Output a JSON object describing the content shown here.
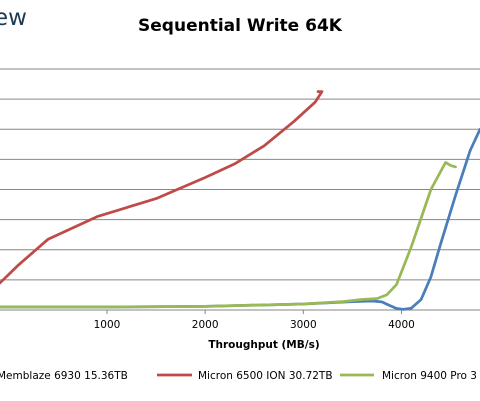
{
  "logo_text": "ew",
  "chart_data": {
    "type": "line",
    "title": "Sequential Write 64K",
    "xlabel": "Throughput (MB/s)",
    "ylabel": "",
    "xlim": [
      -90,
      4800
    ],
    "ylim": [
      0,
      8.4
    ],
    "x_ticks": [
      1000,
      2000,
      3000,
      4000
    ],
    "grid": true,
    "legend_position": "bottom",
    "series": [
      {
        "name": "Memblaze 6930 15.36TB",
        "color": "#4a7ebb",
        "x": [
          -90,
          500,
          1000,
          2000,
          3000,
          3500,
          3700,
          3800,
          3880,
          3950,
          4020,
          4100,
          4200,
          4300,
          4400,
          4550,
          4700,
          4800
        ],
        "y": [
          0.1,
          0.1,
          0.1,
          0.12,
          0.2,
          0.28,
          0.3,
          0.27,
          0.15,
          0.05,
          0.02,
          0.06,
          0.35,
          1.1,
          2.2,
          3.8,
          5.3,
          6.0
        ]
      },
      {
        "name": "Micron 6500 ION 30.72TB",
        "color": "#be4b48",
        "x": [
          -90,
          100,
          400,
          900,
          1500,
          2000,
          2300,
          2600,
          2900,
          3120,
          3190,
          3150
        ],
        "y": [
          0.9,
          1.5,
          2.35,
          3.1,
          3.7,
          4.4,
          4.85,
          5.45,
          6.25,
          6.9,
          7.25,
          7.25
        ]
      },
      {
        "name": "Micron 9400 Pro 3",
        "color": "#98b954",
        "x": [
          -90,
          500,
          1000,
          2000,
          3000,
          3400,
          3600,
          3750,
          3850,
          3950,
          4100,
          4300,
          4450,
          4500,
          4550
        ],
        "y": [
          0.1,
          0.1,
          0.1,
          0.12,
          0.2,
          0.28,
          0.35,
          0.38,
          0.5,
          0.85,
          2.1,
          4.0,
          4.9,
          4.8,
          4.75
        ]
      }
    ]
  }
}
